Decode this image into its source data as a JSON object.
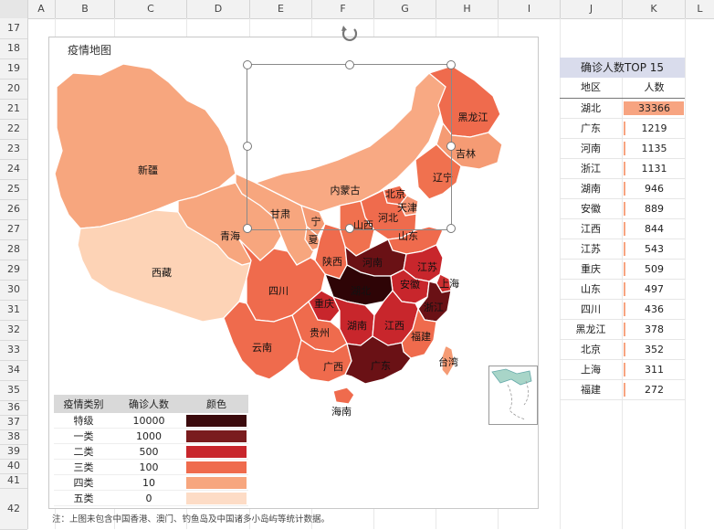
{
  "columns": [
    "A",
    "B",
    "C",
    "D",
    "E",
    "F",
    "G",
    "H",
    "I",
    "J",
    "K",
    "L"
  ],
  "rows": [
    "17",
    "18",
    "19",
    "20",
    "21",
    "22",
    "23",
    "24",
    "25",
    "26",
    "27",
    "28",
    "29",
    "30",
    "31",
    "32",
    "33",
    "34",
    "35",
    "36",
    "37",
    "38",
    "39",
    "40",
    "41",
    "42"
  ],
  "chart": {
    "title": "疫情地图",
    "provinces": [
      {
        "name": "新疆",
        "color": "#f7a67e"
      },
      {
        "name": "西藏",
        "color": "#fdd3b6"
      },
      {
        "name": "青海",
        "color": "#f7a67e"
      },
      {
        "name": "甘肃",
        "color": "#f7a67e"
      },
      {
        "name": "内蒙古",
        "color": "#f8a983"
      },
      {
        "name": "黑龙江",
        "color": "#ef6b4d"
      },
      {
        "name": "吉林",
        "color": "#f59b74"
      },
      {
        "name": "辽宁",
        "color": "#f0714f"
      },
      {
        "name": "北京",
        "color": "#ef6b4d"
      },
      {
        "name": "天津",
        "color": "#f39271"
      },
      {
        "name": "河北",
        "color": "#ef6b4d"
      },
      {
        "name": "山西",
        "color": "#f0714f"
      },
      {
        "name": "宁",
        "color": "#f59b74"
      },
      {
        "name": "夏",
        "color": "#f59b74"
      },
      {
        "name": "陕西",
        "color": "#ef6b4d"
      },
      {
        "name": "山东",
        "color": "#ef6b4d"
      },
      {
        "name": "河南",
        "color": "#6a1115"
      },
      {
        "name": "江苏",
        "color": "#c8262c"
      },
      {
        "name": "安徽",
        "color": "#c8262c"
      },
      {
        "name": "上海",
        "color": "#cd2f30"
      },
      {
        "name": "湖北",
        "color": "#2e0406"
      },
      {
        "name": "浙江",
        "color": "#6a1115"
      },
      {
        "name": "四川",
        "color": "#ef6b4d"
      },
      {
        "name": "重庆",
        "color": "#c8262c"
      },
      {
        "name": "湖南",
        "color": "#c8262c"
      },
      {
        "name": "江西",
        "color": "#c8262c"
      },
      {
        "name": "贵州",
        "color": "#ef6b4d"
      },
      {
        "name": "福建",
        "color": "#ef6b4d"
      },
      {
        "name": "云南",
        "color": "#ef6b4d"
      },
      {
        "name": "广西",
        "color": "#ef6b4d"
      },
      {
        "name": "广东",
        "color": "#6a1115"
      },
      {
        "name": "台湾",
        "color": "#f59b74"
      },
      {
        "name": "海南",
        "color": "#ef6b4d"
      }
    ],
    "legend": {
      "headers": [
        "疫情类别",
        "确诊人数",
        "颜色"
      ],
      "rows": [
        {
          "category": "特级",
          "count": "10000",
          "color": "#3b0a0d"
        },
        {
          "category": "一类",
          "count": "1000",
          "color": "#7a1c1e"
        },
        {
          "category": "二类",
          "count": "500",
          "color": "#c8262c"
        },
        {
          "category": "三类",
          "count": "100",
          "color": "#ef6b4d"
        },
        {
          "category": "四类",
          "count": "10",
          "color": "#f7a67e"
        },
        {
          "category": "五类",
          "count": "0",
          "color": "#fddcc6"
        }
      ]
    }
  },
  "ranking": {
    "title": "确诊人数TOP 15",
    "col_region": "地区",
    "col_count": "人数",
    "rows": [
      {
        "region": "湖北",
        "count": "33366",
        "share": 1.0
      },
      {
        "region": "广东",
        "count": "1219",
        "share": 0.037
      },
      {
        "region": "河南",
        "count": "1135",
        "share": 0.034
      },
      {
        "region": "浙江",
        "count": "1131",
        "share": 0.034
      },
      {
        "region": "湖南",
        "count": "946",
        "share": 0.028
      },
      {
        "region": "安徽",
        "count": "889",
        "share": 0.027
      },
      {
        "region": "江西",
        "count": "844",
        "share": 0.025
      },
      {
        "region": "江苏",
        "count": "543",
        "share": 0.016
      },
      {
        "region": "重庆",
        "count": "509",
        "share": 0.015
      },
      {
        "region": "山东",
        "count": "497",
        "share": 0.015
      },
      {
        "region": "四川",
        "count": "436",
        "share": 0.013
      },
      {
        "region": "黑龙江",
        "count": "378",
        "share": 0.011
      },
      {
        "region": "北京",
        "count": "352",
        "share": 0.011
      },
      {
        "region": "上海",
        "count": "311",
        "share": 0.009
      },
      {
        "region": "福建",
        "count": "272",
        "share": 0.008
      }
    ]
  },
  "note": "注：上图未包含中国香港、澳门、钓鱼岛及中国诸多小岛屿等统计数据。"
}
